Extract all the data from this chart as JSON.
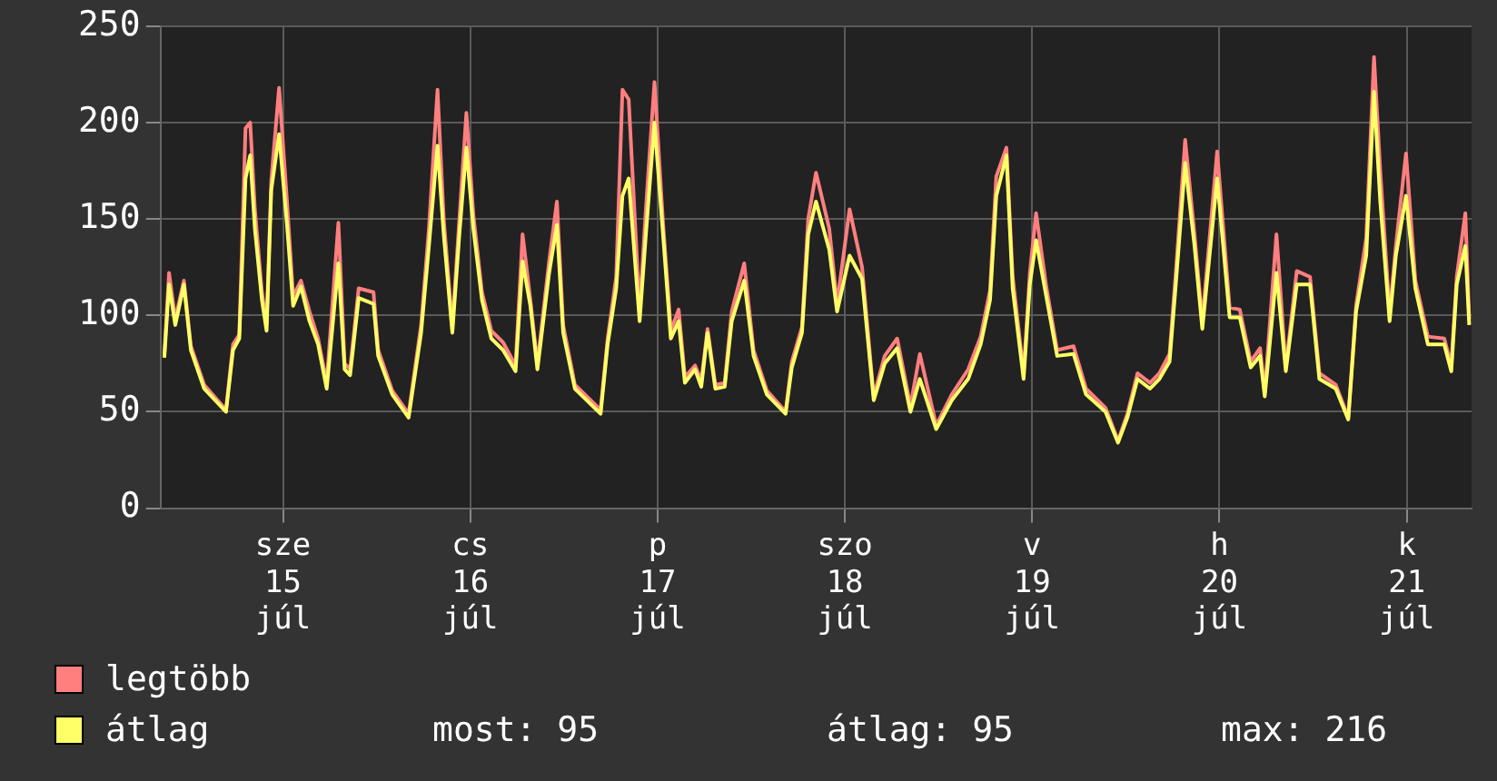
{
  "chart_data": {
    "type": "line",
    "x": [
      "--07-14T20:48",
      "--07-14T21:24",
      "--07-14T22:12",
      "--07-14T23:18",
      "--07-15T00:12",
      "--07-15T01:54",
      "--07-15T04:42",
      "--07-15T05:36",
      "--07-15T06:24",
      "--07-15T07:12",
      "--07-15T07:48",
      "--07-15T08:24",
      "--07-15T09:18",
      "--07-15T09:54",
      "--07-15T10:30",
      "--07-15T11:30",
      "--07-15T12:30",
      "--07-15T13:18",
      "--07-15T14:18",
      "--07-15T15:24",
      "--07-15T16:30",
      "--07-15T17:36",
      "--07-15T19:06",
      "--07-15T19:54",
      "--07-15T20:36",
      "--07-15T21:42",
      "--07-15T23:36",
      "--07-16T00:12",
      "--07-16T02:00",
      "--07-16T04:06",
      "--07-16T05:42",
      "--07-16T06:42",
      "--07-16T07:48",
      "--07-16T08:36",
      "--07-16T09:42",
      "--07-16T10:36",
      "--07-16T11:30",
      "--07-16T12:24",
      "--07-16T13:30",
      "--07-16T14:42",
      "--07-16T16:12",
      "--07-16T17:48",
      "--07-16T18:42",
      "--07-16T19:42",
      "--07-16T20:36",
      "--07-16T22:06",
      "--07-16T23:06",
      "--07-16T23:54",
      "--07-17T01:24",
      "--07-17T04:42",
      "--07-17T05:36",
      "--07-17T06:42",
      "--07-17T07:30",
      "--07-17T08:18",
      "--07-17T09:42",
      "--07-17T10:30",
      "--07-17T11:36",
      "--07-17T12:42",
      "--07-17T13:42",
      "--07-17T14:42",
      "--07-17T15:30",
      "--07-17T16:48",
      "--07-17T17:36",
      "--07-17T18:24",
      "--07-17T19:24",
      "--07-17T20:36",
      "--07-17T21:30",
      "--07-17T23:06",
      "--07-18T00:18",
      "--07-18T02:00",
      "--07-18T04:24",
      "--07-18T05:12",
      "--07-18T06:30",
      "--07-18T07:18",
      "--07-18T08:18",
      "--07-18T10:00",
      "--07-18T11:00",
      "--07-18T12:36",
      "--07-18T14:12",
      "--07-18T15:42",
      "--07-18T17:06",
      "--07-18T18:42",
      "--07-18T20:24",
      "--07-18T21:36",
      "--07-18T23:42",
      "--07-19T01:42",
      "--07-19T03:48",
      "--07-19T05:24",
      "--07-19T06:36",
      "--07-19T07:24",
      "--07-19T08:42",
      "--07-19T09:30",
      "--07-19T10:54",
      "--07-19T11:42",
      "--07-19T12:30",
      "--07-19T13:48",
      "--07-19T15:12",
      "--07-19T17:18",
      "--07-19T18:54",
      "--07-19T21:24",
      "--07-19T23:00",
      "--07-20T00:12",
      "--07-20T01:30",
      "--07-20T03:06",
      "--07-20T04:18",
      "--07-20T05:36",
      "--07-20T06:24",
      "--07-20T07:36",
      "--07-20T08:48",
      "--07-20T09:48",
      "--07-20T11:42",
      "--07-20T13:18",
      "--07-20T14:36",
      "--07-20T16:00",
      "--07-20T17:12",
      "--07-20T17:48",
      "--07-20T19:18",
      "--07-20T20:30",
      "--07-20T21:54",
      "--07-20T23:36",
      "--07-21T00:48",
      "--07-21T02:54",
      "--07-21T04:30",
      "--07-21T05:30",
      "--07-21T06:48",
      "--07-21T07:48",
      "--07-21T08:36",
      "--07-21T09:48",
      "--07-21T10:36",
      "--07-21T11:54",
      "--07-21T13:06",
      "--07-21T14:42",
      "--07-21T16:48",
      "--07-21T17:42",
      "--07-21T18:24",
      "--07-21T19:30",
      "--07-21T20:00"
    ],
    "series": [
      {
        "name": "legtöbb",
        "color": "#ff7f7f",
        "values": [
          80,
          122,
          98,
          118,
          84,
          64,
          51,
          85,
          90,
          197,
          200,
          155,
          112,
          95,
          170,
          218,
          160,
          110,
          118,
          102,
          88,
          65,
          148,
          75,
          72,
          114,
          112,
          82,
          61,
          49,
          95,
          145,
          217,
          150,
          94,
          150,
          205,
          152,
          112,
          92,
          86,
          74,
          142,
          108,
          75,
          128,
          159,
          95,
          64,
          51,
          88,
          120,
          217,
          212,
          102,
          155,
          221,
          148,
          92,
          103,
          68,
          74,
          66,
          93,
          64,
          65,
          102,
          127,
          82,
          61,
          50,
          76,
          94,
          150,
          174,
          145,
          106,
          155,
          125,
          58,
          79,
          88,
          53,
          80,
          43,
          59,
          72,
          89,
          113,
          172,
          187,
          120,
          70,
          122,
          153,
          115,
          82,
          84,
          62,
          52,
          35,
          49,
          70,
          65,
          70,
          80,
          122,
          191,
          142,
          97,
          185,
          104,
          103,
          76,
          83,
          60,
          142,
          73,
          123,
          120,
          70,
          64,
          47,
          105,
          140,
          234,
          175,
          101,
          136,
          184,
          118,
          89,
          88,
          74,
          120,
          153,
          98
        ]
      },
      {
        "name": "átlag",
        "color": "#ffff66",
        "values": [
          78,
          116,
          95,
          116,
          82,
          62,
          50,
          82,
          88,
          171,
          183,
          145,
          108,
          92,
          165,
          194,
          148,
          105,
          115,
          97,
          85,
          62,
          127,
          72,
          69,
          109,
          106,
          79,
          59,
          47,
          91,
          136,
          188,
          142,
          91,
          142,
          187,
          145,
          108,
          88,
          82,
          71,
          128,
          105,
          72,
          122,
          147,
          91,
          62,
          49,
          85,
          114,
          162,
          171,
          97,
          142,
          200,
          142,
          88,
          97,
          65,
          72,
          63,
          91,
          62,
          63,
          97,
          118,
          79,
          59,
          49,
          73,
          91,
          142,
          159,
          134,
          102,
          131,
          119,
          56,
          75,
          83,
          50,
          67,
          41,
          56,
          67,
          85,
          108,
          162,
          183,
          114,
          67,
          116,
          139,
          110,
          79,
          80,
          59,
          50,
          34,
          47,
          67,
          62,
          67,
          76,
          116,
          179,
          136,
          93,
          171,
          99,
          99,
          73,
          79,
          58,
          122,
          71,
          116,
          116,
          67,
          62,
          46,
          102,
          131,
          216,
          159,
          97,
          131,
          162,
          114,
          85,
          85,
          71,
          116,
          136,
          95
        ]
      }
    ],
    "xlim": [
      "--07-14T20:18",
      "--07-21T20:18"
    ],
    "xticks": [
      {
        "value": "--07-15T12:00",
        "label": "sze 15 júl"
      },
      {
        "value": "--07-16T12:00",
        "label": "cs 16 júl"
      },
      {
        "value": "--07-17T12:00",
        "label": "p 17 júl"
      },
      {
        "value": "--07-18T12:00",
        "label": "szo 18 júl"
      },
      {
        "value": "--07-19T12:00",
        "label": "v 19 júl"
      },
      {
        "value": "--07-20T12:00",
        "label": "h 20 júl"
      },
      {
        "value": "--07-21T12:00",
        "label": "k 21 júl"
      }
    ],
    "ylim": [
      0,
      250
    ],
    "yticks": [
      0,
      50,
      100,
      150,
      200,
      250
    ],
    "grid": true,
    "legend": "bottom left",
    "marker": "none",
    "line_style": "solid",
    "annotations": [
      "most: 95",
      "átlag: 95",
      "max: 216"
    ]
  }
}
